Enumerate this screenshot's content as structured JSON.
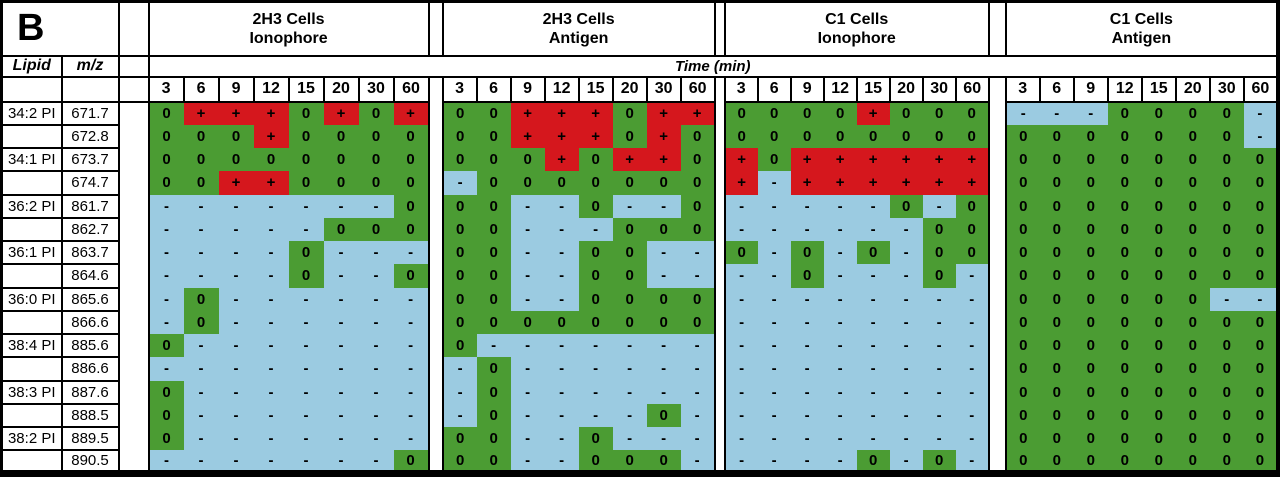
{
  "figure_label": "B",
  "panels": [
    {
      "line1": "2H3 Cells",
      "line2": "Ionophore"
    },
    {
      "line1": "2H3 Cells",
      "line2": "Antigen"
    },
    {
      "line1": "C1 Cells",
      "line2": "Ionophore"
    },
    {
      "line1": "C1 Cells",
      "line2": "Antigen"
    }
  ],
  "chart_data": {
    "type": "heatmap",
    "x_label": "Time (min)",
    "x_ticks": [
      "3",
      "6",
      "9",
      "12",
      "15",
      "20",
      "30",
      "60"
    ],
    "row_label_headers": [
      "Lipid",
      "m/z"
    ],
    "conditions": [
      "2H3 Cells Ionophore",
      "2H3 Cells Antigen",
      "C1 Cells Ionophore",
      "C1 Cells Antigen"
    ],
    "symbols": [
      "0",
      "+",
      "-"
    ],
    "symbol_colors": {
      "0": "#4b9c33",
      "+": "#d5171d",
      "-": "#9bcbe1"
    },
    "rows": [
      {
        "lipid": "34:2 PI",
        "mz": "671.7",
        "values": [
          "0+++0+0+",
          "00+++0++",
          "0000+000",
          "---0000-"
        ]
      },
      {
        "lipid": "",
        "mz": "672.8",
        "values": [
          "000+0000",
          "00+++0+0",
          "00000000",
          "0000000-"
        ]
      },
      {
        "lipid": "34:1 PI",
        "mz": "673.7",
        "values": [
          "00000000",
          "000+0++0",
          "+0++++++",
          "00000000"
        ]
      },
      {
        "lipid": "",
        "mz": "674.7",
        "values": [
          "00++0000",
          "-0000000",
          "+-++++++",
          "00000000"
        ]
      },
      {
        "lipid": "36:2 PI",
        "mz": "861.7",
        "values": [
          "-------0",
          "00--0--0",
          "-----0-0",
          "00000000"
        ]
      },
      {
        "lipid": "",
        "mz": "862.7",
        "values": [
          "-----000",
          "00---000",
          "------00",
          "00000000"
        ]
      },
      {
        "lipid": "36:1 PI",
        "mz": "863.7",
        "values": [
          "----0---",
          "00--00--",
          "0-0-0-00",
          "00000000"
        ]
      },
      {
        "lipid": "",
        "mz": "864.6",
        "values": [
          "----0--0",
          "00--00--",
          "--0---0-",
          "00000000"
        ]
      },
      {
        "lipid": "36:0 PI",
        "mz": "865.6",
        "values": [
          "-0------",
          "00--0000",
          "--------",
          "000000--"
        ]
      },
      {
        "lipid": "",
        "mz": "866.6",
        "values": [
          "-0------",
          "00000000",
          "--------",
          "00000000"
        ]
      },
      {
        "lipid": "38:4 PI",
        "mz": "885.6",
        "values": [
          "0-------",
          "0-------",
          "--------",
          "00000000"
        ]
      },
      {
        "lipid": "",
        "mz": "886.6",
        "values": [
          "--------",
          "-0------",
          "--------",
          "00000000"
        ]
      },
      {
        "lipid": "38:3 PI",
        "mz": "887.6",
        "values": [
          "0-------",
          "-0------",
          "--------",
          "00000000"
        ]
      },
      {
        "lipid": "",
        "mz": "888.5",
        "values": [
          "0-------",
          "-0----0-",
          "--------",
          "00000000"
        ]
      },
      {
        "lipid": "38:2 PI",
        "mz": "889.5",
        "values": [
          "0-------",
          "00--0---",
          "--------",
          "00000000"
        ]
      },
      {
        "lipid": "",
        "mz": "890.5",
        "values": [
          "-------0",
          "00--000-",
          "----0-0-",
          "00000000"
        ]
      }
    ]
  }
}
